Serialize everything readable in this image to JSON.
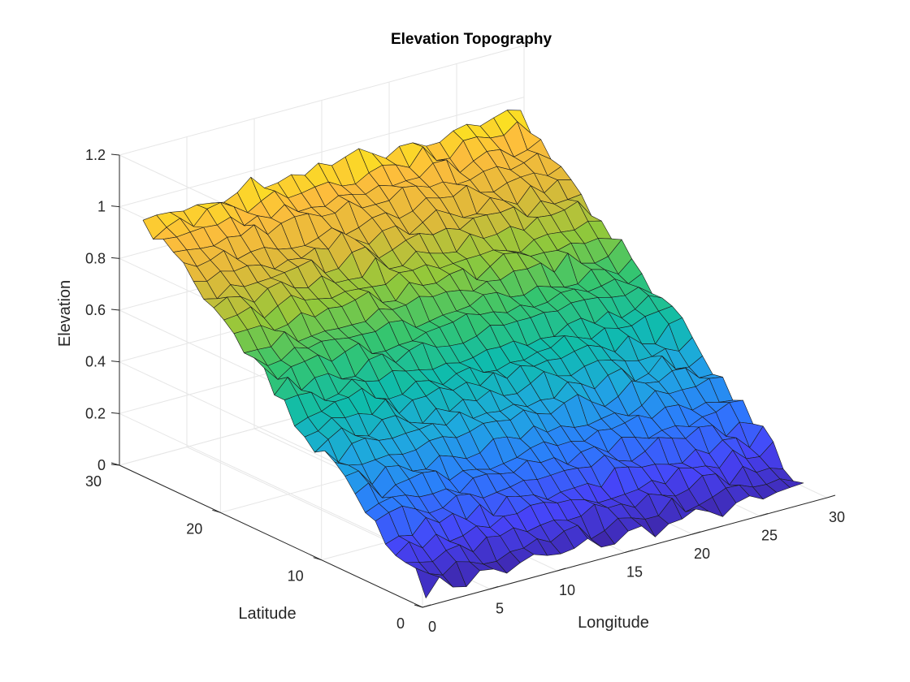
{
  "chart_data": {
    "type": "surface",
    "title": "Elevation Topography",
    "xlabel": "Longitude",
    "ylabel": "Latitude",
    "zlabel": "Elevation",
    "xlim": [
      0,
      30
    ],
    "ylim": [
      0,
      30
    ],
    "zlim": [
      0,
      1.2
    ],
    "x_ticks": [
      0,
      5,
      10,
      15,
      20,
      25,
      30
    ],
    "y_ticks": [
      0,
      10,
      20,
      30
    ],
    "z_ticks": [
      0,
      0.2,
      0.4,
      0.6,
      0.8,
      1,
      1.2
    ],
    "x_tick_labels": [
      "0",
      "5",
      "10",
      "15",
      "20",
      "25",
      "30"
    ],
    "y_tick_labels": [
      "0",
      "10",
      "20",
      "30"
    ],
    "z_tick_labels": [
      "0",
      "0.2",
      "0.4",
      "0.6",
      "0.8",
      "1",
      "1.2"
    ],
    "grid": true,
    "colormap": [
      "#3e26a8",
      "#4743f8",
      "#2c7bfd",
      "#1fa8e0",
      "#0fbcac",
      "#35c56f",
      "#93c83a",
      "#e0b93a",
      "#fdbd3c",
      "#f9fb0e"
    ],
    "grid_points": {
      "x_start": 1,
      "x_end": 29,
      "y_start": 1,
      "y_end": 29,
      "count": 29
    },
    "surface_model": "elevation = y / 30 + small random roughness (about ±0.03)"
  }
}
